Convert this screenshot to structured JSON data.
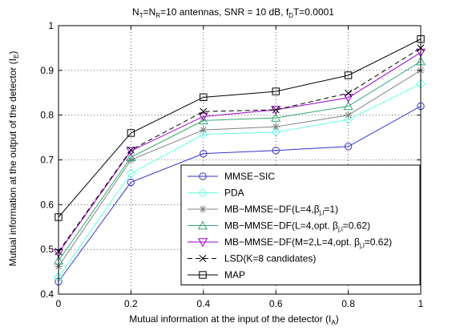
{
  "chart_data": {
    "type": "line",
    "title": "N_T=N_R=10 antennas, SNR = 10 dB, f_D T=0.0001",
    "title_parts": {
      "nt": "N",
      "nt_sub": "T",
      "eq1": "=N",
      "nr_sub": "R",
      "mid": "=10 antennas, SNR = 10 dB, f",
      "fd_sub": "D",
      "end": "T=0.0001"
    },
    "xlabel": "Mutual information at the input of the detector (I_A)",
    "xlabel_parts": {
      "main": "Mutual information at the input of the detector (I",
      "sub": "A",
      "close": ")"
    },
    "ylabel": "Mutual information at the output of the detector (I_E)",
    "ylabel_parts": {
      "main": "Mutual information at the output of the detector (I",
      "sub": "E",
      "close": ")"
    },
    "xlim": [
      0,
      1
    ],
    "ylim": [
      0.4,
      1
    ],
    "x_ticks": [
      0,
      0.2,
      0.4,
      0.6,
      0.8,
      1
    ],
    "x_tick_labels": [
      "0",
      "0.2",
      "0.4",
      "0.6",
      "0.8",
      "1"
    ],
    "y_ticks": [
      0.4,
      0.5,
      0.6,
      0.7,
      0.8,
      0.9,
      1
    ],
    "y_tick_labels": [
      "0.4",
      "0.5",
      "0.6",
      "0.7",
      "0.8",
      "0.9",
      "1"
    ],
    "grid": "dotted",
    "legend_position": "bottom-right",
    "x": [
      0,
      0.2,
      0.4,
      0.6,
      0.8,
      1
    ],
    "series": [
      {
        "name": "MMSE-SIC",
        "color": "#3333cc",
        "marker": "circle",
        "dash": "solid",
        "values": [
          0.428,
          0.65,
          0.714,
          0.721,
          0.73,
          0.82
        ]
      },
      {
        "name": "PDA",
        "color": "#66ffe6",
        "marker": "diamond",
        "dash": "solid",
        "values": [
          0.438,
          0.67,
          0.757,
          0.762,
          0.79,
          0.87
        ]
      },
      {
        "name": "MB-MMSE-DF(L=4,β_j,l=1)",
        "color": "#808080",
        "marker": "star",
        "dash": "solid",
        "values": [
          0.462,
          0.7,
          0.767,
          0.774,
          0.8,
          0.9
        ]
      },
      {
        "name": "MB-MMSE-DF(L=4,opt. β_j,l=0.62)",
        "color": "#33a673",
        "marker": "triangle-up",
        "dash": "solid",
        "values": [
          0.475,
          0.706,
          0.788,
          0.794,
          0.82,
          0.92
        ]
      },
      {
        "name": "MB-MMSE-DF(M=2,L=4,opt. β_j,l=0.62)",
        "color": "#9900cc",
        "marker": "triangle-down",
        "dash": "solid",
        "values": [
          0.492,
          0.72,
          0.797,
          0.812,
          0.839,
          0.94
        ]
      },
      {
        "name": "LSD(K=8 candidates)",
        "color": "#000000",
        "marker": "x",
        "dash": "dashed",
        "values": [
          0.495,
          0.722,
          0.808,
          0.812,
          0.849,
          0.95
        ]
      },
      {
        "name": "MAP",
        "color": "#000000",
        "marker": "square",
        "dash": "solid",
        "values": [
          0.572,
          0.76,
          0.84,
          0.853,
          0.889,
          0.97
        ]
      }
    ],
    "legend_entries": [
      {
        "pre": "MMSE−SIC",
        "sub": "",
        "post": ""
      },
      {
        "pre": "PDA",
        "sub": "",
        "post": ""
      },
      {
        "pre": "MB−MMSE−DF(L=4,β",
        "sub": "j,l",
        "post": "=1)"
      },
      {
        "pre": "MB−MMSE−DF(L=4,opt. β",
        "sub": "j,l",
        "post": "=0.62)"
      },
      {
        "pre": "MB−MMSE−DF(M=2,L=4,opt. β",
        "sub": "j,l",
        "post": "=0.62)"
      },
      {
        "pre": "LSD(K=8 candidates)",
        "sub": "",
        "post": ""
      },
      {
        "pre": "MAP",
        "sub": "",
        "post": ""
      }
    ]
  }
}
